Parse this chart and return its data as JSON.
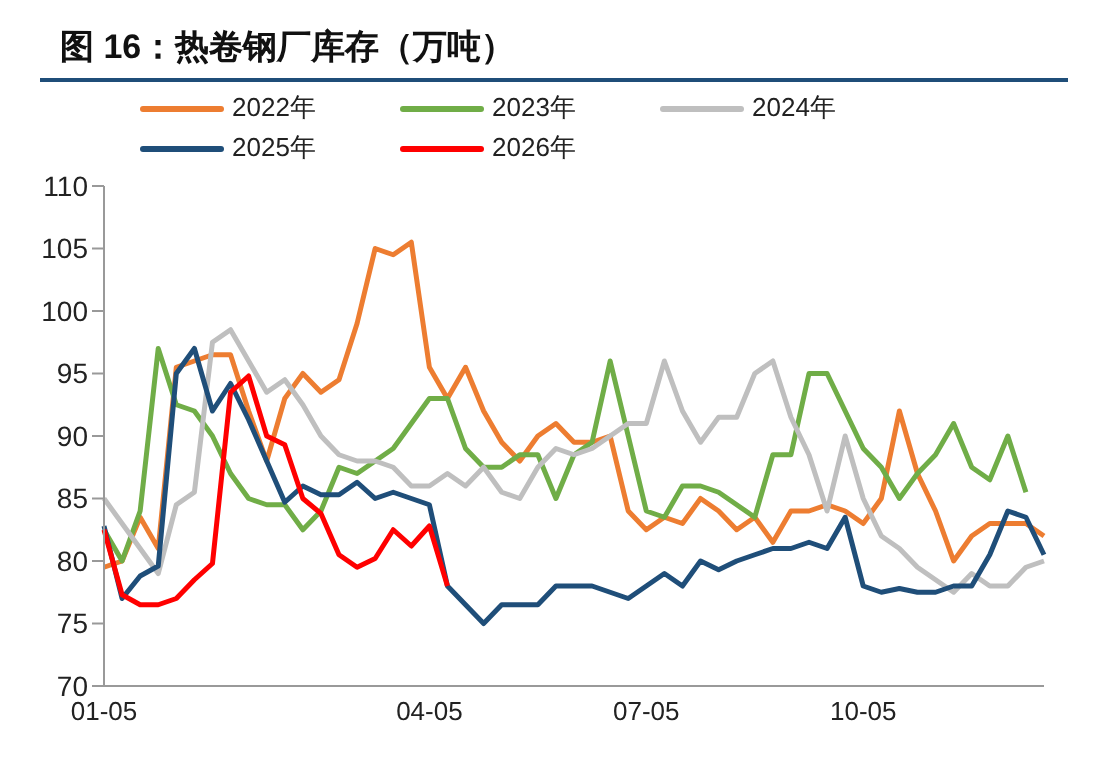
{
  "chart_data": {
    "type": "line",
    "title": "图 16：热卷钢厂库存（万吨）",
    "categories": [
      "01-05",
      null,
      null,
      null,
      null,
      null,
      null,
      null,
      null,
      null,
      null,
      null,
      null,
      null,
      null,
      null,
      null,
      null,
      "04-05",
      null,
      null,
      null,
      null,
      null,
      null,
      null,
      null,
      null,
      null,
      null,
      "07-05",
      null,
      null,
      null,
      null,
      null,
      null,
      null,
      null,
      null,
      null,
      null,
      "10-05",
      null,
      null,
      null,
      null,
      null,
      null,
      null,
      null,
      null,
      null
    ],
    "series": [
      {
        "name": "2022年",
        "color": "#ed7d31",
        "values": [
          79.5,
          80,
          83.5,
          81,
          95.5,
          96,
          96.5,
          96.5,
          92,
          88,
          93,
          95,
          93.5,
          94.5,
          99,
          105,
          104.5,
          105.5,
          95.5,
          93,
          95.5,
          92,
          89.5,
          88,
          90,
          91,
          89.5,
          89.5,
          90,
          84,
          82.5,
          83.5,
          83,
          85,
          84,
          82.5,
          83.5,
          81.5,
          84,
          84,
          84.5,
          84,
          83,
          85,
          92,
          87,
          84,
          80,
          82,
          83,
          83,
          83,
          82
        ]
      },
      {
        "name": "2023年",
        "color": "#70ad47",
        "values": [
          82.5,
          80,
          84,
          97,
          92.5,
          92,
          90,
          87,
          85,
          84.5,
          84.5,
          82.5,
          84,
          87.5,
          87,
          88,
          89,
          91,
          93,
          93,
          89,
          87.5,
          87.5,
          88.5,
          88.5,
          85,
          88.5,
          89.5,
          96,
          90,
          84,
          83.5,
          86,
          86,
          85.5,
          84.5,
          83.5,
          88.5,
          88.5,
          95,
          95,
          92,
          89,
          87.5,
          85,
          87,
          88.5,
          91,
          87.5,
          86.5,
          90,
          85.5,
          null
        ]
      },
      {
        "name": "2024年",
        "color": "#bfbfbf",
        "values": [
          85,
          83,
          81,
          79,
          84.5,
          85.5,
          97.5,
          98.5,
          96,
          93.5,
          94.5,
          92.5,
          90,
          88.5,
          88,
          88,
          87.5,
          86,
          86,
          87,
          86,
          87.5,
          85.5,
          85,
          87.5,
          89,
          88.5,
          89,
          90,
          91,
          91,
          96,
          92,
          89.5,
          91.5,
          91.5,
          95,
          96,
          91.5,
          88.5,
          84,
          90,
          85,
          82,
          81,
          79.5,
          78.5,
          77.5,
          79,
          78,
          78,
          79.5,
          80
        ]
      },
      {
        "name": "2025年",
        "color": "#1f4e79",
        "values": [
          82.8,
          77,
          78.8,
          79.6,
          95,
          97,
          92,
          94.2,
          91.3,
          88,
          84.7,
          86,
          85.3,
          85.3,
          86.3,
          85,
          85.5,
          85,
          84.5,
          78,
          76.5,
          75,
          76.5,
          76.5,
          76.5,
          78,
          78,
          78,
          77.5,
          77,
          78,
          79,
          78,
          80,
          79.3,
          80,
          80.5,
          81,
          81,
          81.5,
          81,
          83.5,
          78,
          77.5,
          77.8,
          77.5,
          77.5,
          78,
          78,
          80.5,
          84,
          83.5,
          80.5
        ]
      },
      {
        "name": "2026年",
        "color": "#ff0000",
        "values": [
          82.5,
          77.3,
          76.5,
          76.5,
          77,
          78.5,
          79.8,
          93.5,
          94.8,
          90,
          89.3,
          85,
          83.8,
          80.5,
          79.5,
          80.2,
          82.5,
          81.2,
          82.8,
          78,
          null,
          null,
          null,
          null,
          null,
          null,
          null,
          null,
          null,
          null,
          null,
          null,
          null,
          null,
          null,
          null,
          null,
          null,
          null,
          null,
          null,
          null,
          null,
          null,
          null,
          null,
          null,
          null,
          null,
          null,
          null,
          null,
          null
        ]
      }
    ],
    "ylim": [
      70,
      110
    ],
    "yticks": [
      70,
      75,
      80,
      85,
      90,
      95,
      100,
      105,
      110
    ],
    "grid": false,
    "legend": "top",
    "marker": "none",
    "line_style": "solid"
  }
}
